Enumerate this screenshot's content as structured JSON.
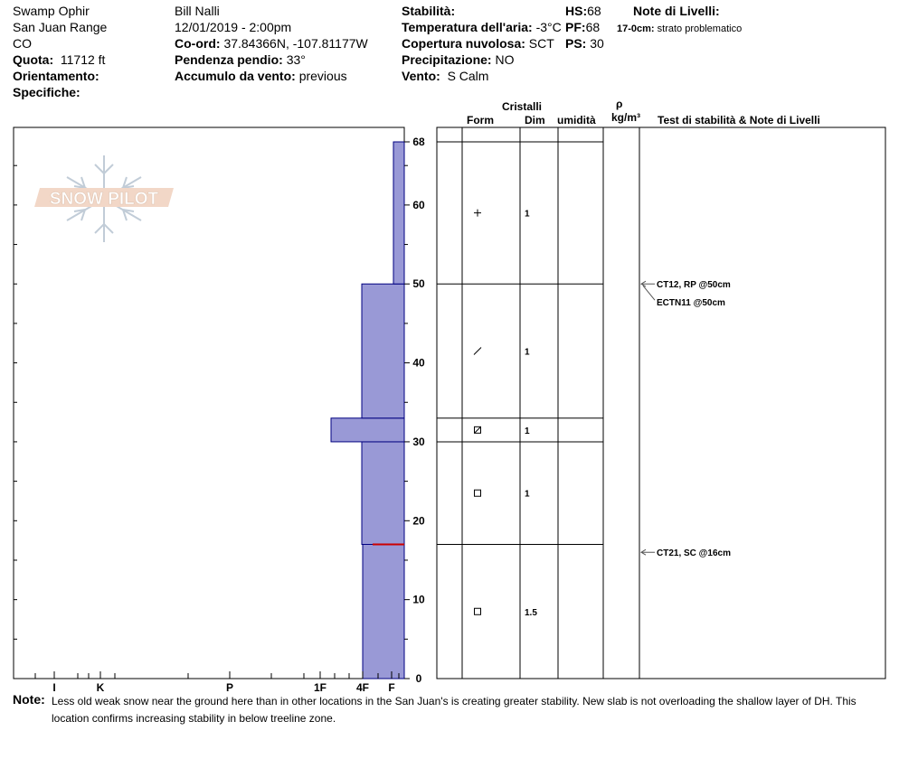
{
  "header": {
    "location": "Swamp Ophir",
    "range": "San Juan Range",
    "state": "CO",
    "elevation_label": "Quota:",
    "elevation_value": "11712 ft",
    "aspect_label": "Orientamento:",
    "specifics_label": "Specifiche:",
    "observer": "Bill Nalli",
    "datetime": "12/01/2019 - 2:00pm",
    "coord_label": "Co-ord:",
    "coord_value": "37.84366N, -107.81177W",
    "slope_label": "Pendenza pendio:",
    "slope_value": "33°",
    "wind_loading_label": "Accumulo da vento:",
    "wind_loading_value": "previous",
    "stability_label": "Stabilità:",
    "air_temp_label": "Temperatura dell'aria:",
    "air_temp_value": "-3°C",
    "cloud_label": "Copertura nuvolosa:",
    "cloud_value": "SCT",
    "precip_label": "Precipitazione:",
    "precip_value": "NO",
    "wind_label": "Vento:",
    "wind_value": "S Calm",
    "hs_label": "HS:",
    "hs_value": "68",
    "pf_label": "PF:",
    "pf_value": "68",
    "ps_label": "PS:",
    "ps_value": "30",
    "layer_notes_label": "Note di Livelli:",
    "layer_note_depth": "17-0cm:",
    "layer_note_text": "strato problematico"
  },
  "logo_text": "SNOW PILOT",
  "table_headers": {
    "crystals": "Cristalli",
    "form": "Form",
    "dim": "Dim",
    "moisture": "umidità",
    "rho": "ρ",
    "density_unit": "kg/m³",
    "tests": "Test di stabilità & Note di Livelli"
  },
  "notes_label": "Note:",
  "notes_text_1": "Less old weak snow near the ground here than in other locations in the San Juan's is creating greater stability. New slab is not overloading the shallow layer of DH. This",
  "notes_text_2": "location confirms increasing stability in below treeline zone.",
  "colors": {
    "hardness_fill": "#9999d6",
    "hardness_stroke": "#000080",
    "weak_layer": "#cc0000"
  },
  "chart_data": {
    "type": "snow_profile",
    "hs_cm": 68,
    "y_range": [
      0,
      68
    ],
    "y_ticks": [
      0,
      10,
      20,
      30,
      40,
      50,
      60,
      68
    ],
    "hardness_scale": [
      "I",
      "K",
      "P",
      "1F",
      "4F",
      "F"
    ],
    "hardness_layers": [
      {
        "top": 17,
        "bottom": 0,
        "hardness": "4F"
      },
      {
        "top": 30,
        "bottom": 17,
        "hardness": "4F+"
      },
      {
        "top": 33,
        "bottom": 30,
        "hardness": "1F"
      },
      {
        "top": 50,
        "bottom": 33,
        "hardness": "4F+"
      },
      {
        "top": 68,
        "bottom": 50,
        "hardness": "F+"
      }
    ],
    "layer_boundaries": [
      68,
      50,
      33,
      30,
      17
    ],
    "grain_rows": [
      {
        "depth": 59,
        "form": "+",
        "size": "1"
      },
      {
        "depth": 41.5,
        "form": "/",
        "size": "1"
      },
      {
        "depth": 31.5,
        "form": "⊠",
        "size": "1"
      },
      {
        "depth": 23.5,
        "form": "□",
        "size": "1"
      },
      {
        "depth": 8.5,
        "form": "□",
        "size": "1.5"
      }
    ],
    "stability_tests": [
      {
        "depth": 50,
        "label": "CT12, RP @50cm"
      },
      {
        "depth": 50,
        "label": "ECTN11 @50cm"
      },
      {
        "depth": 16,
        "label": "CT21, SC @16cm"
      }
    ],
    "weak_layer_depth": 17
  }
}
